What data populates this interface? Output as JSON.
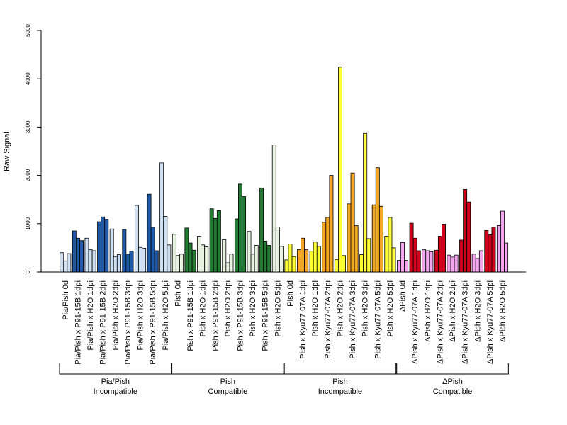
{
  "chart_data": {
    "type": "bar",
    "ylabel": "Raw Signal",
    "ylim": [
      0,
      5000
    ],
    "yticks": [
      0,
      1000,
      2000,
      3000,
      4000,
      5000
    ],
    "grid": false,
    "categories": [
      "Pia/Pish 0d",
      "Pia/Pish x P91-15B 1dpi",
      "Pia/Pish x H2O 1dpi",
      "Pia/Pish x P91-15B 2dpi",
      "Pia/Pish x H2O 2dpi",
      "Pia/Pish x P91-15B 3dpi",
      "Pia/Pish x H2O 3dpi",
      "Pia/Pish x P91-15B 5dpi",
      "Pia/Pish x H2O 5dpi",
      "Pish 0d",
      "Pish x P91-15B 1dpi",
      "Pish x H2O 1dpi",
      "Pish x P91-15B 2dpi",
      "Pish x H2O 2dpi",
      "Pish x P91-15B 3dpi",
      "Pish x H2O 3dpi",
      "Pish x P91-15B 5dpi",
      "Pish x H2O 5dpi",
      "Pish 0d",
      "Pish x Kyu77-07A 1dpi",
      "Pish x H2O 1dpi",
      "Pish x Kyu77-07A 2dpi",
      "Pish x H2O 2dpi",
      "Pish x Kyu77-07A 3dpi",
      "Pish x H2O 3dpi",
      "Pish x Kyu77-07A 5dpi",
      "Pish x H2O 5dpi",
      "ΔPish 0d",
      "ΔPish x Kyu77-07A 1dpi",
      "ΔPish x H2O 1dpi",
      "ΔPish x Kyu77-07A 2dpi",
      "ΔPish x H2O 2dpi",
      "ΔPish x Kyu77-07A 3dpi",
      "ΔPish x H2O 3dpi",
      "ΔPish x Kyu77-07A 5dpi",
      "ΔPish x H2O 5dpi"
    ],
    "values": [
      [
        400,
        230,
        380
      ],
      [
        850,
        700,
        650
      ],
      [
        700,
        460,
        440
      ],
      [
        1040,
        1140,
        1090
      ],
      [
        890,
        320,
        360
      ],
      [
        880,
        370,
        430
      ],
      [
        1380,
        510,
        490
      ],
      [
        1610,
        930,
        440
      ],
      [
        2260,
        1150,
        560
      ],
      [
        780,
        340,
        370
      ],
      [
        910,
        600,
        450
      ],
      [
        740,
        560,
        520
      ],
      [
        1310,
        1110,
        1270
      ],
      [
        670,
        190,
        370
      ],
      [
        1100,
        1820,
        1560
      ],
      [
        840,
        370,
        550
      ],
      [
        1740,
        640,
        550
      ],
      [
        2630,
        930,
        530
      ],
      [
        250,
        580,
        320
      ],
      [
        460,
        700,
        460
      ],
      [
        430,
        620,
        530
      ],
      [
        1030,
        1130,
        2000
      ],
      [
        260,
        4240,
        340
      ],
      [
        1410,
        2050,
        960
      ],
      [
        360,
        2870,
        690
      ],
      [
        1390,
        2160,
        1360
      ],
      [
        740,
        1130,
        500
      ],
      [
        240,
        610,
        240
      ],
      [
        1010,
        700,
        440
      ],
      [
        460,
        440,
        420
      ],
      [
        450,
        740,
        990
      ],
      [
        350,
        310,
        350
      ],
      [
        660,
        1710,
        1450
      ],
      [
        370,
        280,
        440
      ],
      [
        860,
        770,
        930
      ],
      [
        960,
        1260,
        600
      ]
    ],
    "bar_colors": [
      "#cfe0f3",
      "#1f5aa8",
      "#cfe0f3",
      "#1f5aa8",
      "#cfe0f3",
      "#1f5aa8",
      "#cfe0f3",
      "#1f5aa8",
      "#cfe0f3",
      "#e6f2df",
      "#237a32",
      "#e6f2df",
      "#237a32",
      "#e6f2df",
      "#237a32",
      "#e6f2df",
      "#237a32",
      "#e6f2df",
      "#ffff33",
      "#f5a623",
      "#ffff33",
      "#f5a623",
      "#ffff33",
      "#f5a623",
      "#ffff33",
      "#f5a623",
      "#ffff33",
      "#f4a6f0",
      "#d0021b",
      "#f4a6f0",
      "#d0021b",
      "#f4a6f0",
      "#d0021b",
      "#f4a6f0",
      "#d0021b",
      "#f4a6f0"
    ],
    "groups": [
      {
        "line1": "Pia/Pish",
        "line2": "Incompatible",
        "start": 0,
        "end": 8
      },
      {
        "line1": "Pish",
        "line2": "Compatible",
        "start": 9,
        "end": 17
      },
      {
        "line1": "Pish",
        "line2": "Incompatible",
        "start": 18,
        "end": 26
      },
      {
        "line1": "ΔPish",
        "line2": "Compatible",
        "start": 27,
        "end": 35
      }
    ]
  }
}
